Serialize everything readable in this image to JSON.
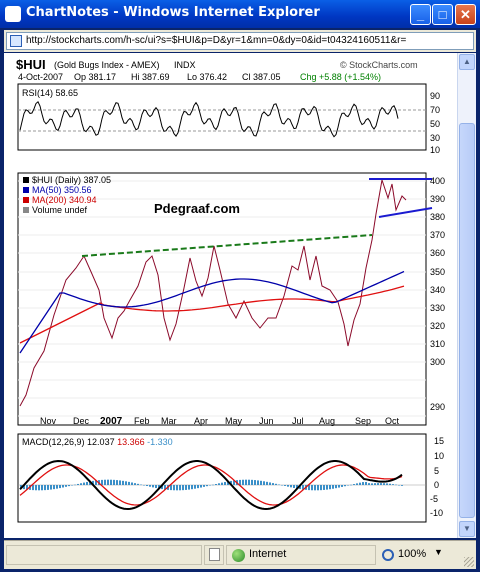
{
  "window": {
    "title": "ChartNotes - Windows Internet Explorer",
    "url": "http://stockcharts.com/h-sc/ui?s=$HUI&p=D&yr=1&mn=0&dy=0&id=t04324160511&r=",
    "buttons": {
      "minimize": "_",
      "maximize": "□",
      "close": "✕"
    }
  },
  "chart_header": {
    "symbol": "$HUI",
    "name": "(Gold Bugs Index - AMEX)",
    "exchange": "INDX",
    "brand": "© StockCharts.com",
    "date": "4-Oct-2007",
    "open": "Op 381.17",
    "high": "Hi 387.69",
    "low": "Lo 376.42",
    "close": "Cl 387.05",
    "change": "Chg +5.88 (+1.54%)",
    "change_color": "#008000"
  },
  "rsi_panel": {
    "label": "RSI(14)",
    "value": "58.65",
    "ticks": [
      "90",
      "70",
      "50",
      "30",
      "10"
    ]
  },
  "price_panel": {
    "legend": [
      {
        "text": "$HUI (Daily) 387.05",
        "color": "#000000"
      },
      {
        "text": "MA(50) 350.56",
        "color": "#0000aa"
      },
      {
        "text": "MA(200) 340.94",
        "color": "#cc0000"
      },
      {
        "text": "Volume undef",
        "color": "#000000"
      }
    ],
    "watermark": "Pdegraaf.com",
    "y_ticks": [
      "400",
      "390",
      "380",
      "370",
      "360",
      "350",
      "340",
      "330",
      "320",
      "310",
      "300",
      "290"
    ],
    "x_ticks": [
      "Nov",
      "Dec",
      "2007",
      "Feb",
      "Mar",
      "Apr",
      "May",
      "Jun",
      "Jul",
      "Aug",
      "Sep",
      "Oct"
    ]
  },
  "macd_panel": {
    "label": "MACD(12,26,9)",
    "macd": "12.037",
    "signal": "13.366",
    "histogram": "-1.330",
    "macd_color": "#000000",
    "signal_color": "#cc0000",
    "hist_color": "#3a8fc8",
    "ticks": [
      "15",
      "10",
      "5",
      "0",
      "-5",
      "-10"
    ]
  },
  "statusbar": {
    "zone": "Internet",
    "zoom": "100%"
  }
}
